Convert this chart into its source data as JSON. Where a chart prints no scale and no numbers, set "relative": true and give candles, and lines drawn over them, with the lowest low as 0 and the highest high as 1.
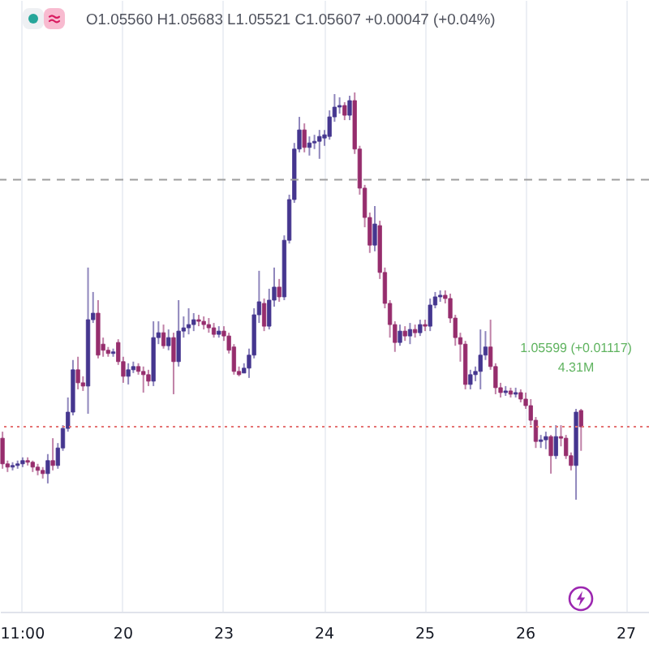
{
  "chart_data": {
    "type": "candlestick",
    "relative": true,
    "annotations": [
      "O1.05560 H1.05683 L1.05521 C1.05607 +0.00047 (+0.04%)",
      "1.05599 (+0.01117)",
      "4.31M"
    ],
    "categories": [
      null,
      null,
      null,
      null,
      "11:00",
      null,
      null,
      null,
      null,
      null,
      null,
      null,
      null,
      null,
      null,
      null,
      null,
      null,
      null,
      null,
      null,
      null,
      null,
      null,
      "20",
      null,
      null,
      null,
      null,
      null,
      null,
      null,
      null,
      null,
      null,
      null,
      null,
      null,
      null,
      null,
      null,
      null,
      null,
      null,
      "23",
      null,
      null,
      null,
      null,
      null,
      null,
      null,
      null,
      null,
      null,
      null,
      null,
      null,
      null,
      null,
      null,
      null,
      null,
      null,
      "24",
      null,
      null,
      null,
      null,
      null,
      null,
      null,
      null,
      null,
      null,
      null,
      null,
      null,
      null,
      null,
      null,
      null,
      null,
      null,
      "25",
      null,
      null,
      null,
      null,
      null,
      null,
      null,
      null,
      null,
      null,
      null,
      null,
      null,
      null,
      null,
      null,
      null,
      null,
      null,
      "26",
      null,
      null,
      null,
      null,
      null,
      null,
      null,
      null,
      null,
      null,
      null,
      null,
      null,
      null,
      null,
      null,
      null,
      null,
      null,
      "27",
      null,
      null,
      null,
      null
    ],
    "ohlc": [
      [
        0.151,
        0.167,
        0.076,
        0.088
      ],
      [
        0.088,
        0.096,
        0.068,
        0.08
      ],
      [
        0.08,
        0.092,
        0.072,
        0.084
      ],
      [
        0.084,
        0.096,
        0.076,
        0.088
      ],
      [
        0.088,
        0.104,
        0.08,
        0.096
      ],
      [
        0.096,
        0.104,
        0.084,
        0.092
      ],
      [
        0.092,
        0.096,
        0.068,
        0.08
      ],
      [
        0.08,
        0.088,
        0.06,
        0.072
      ],
      [
        0.072,
        0.08,
        0.052,
        0.064
      ],
      [
        0.064,
        0.112,
        0.04,
        0.096
      ],
      [
        0.096,
        0.151,
        0.072,
        0.084
      ],
      [
        0.084,
        0.139,
        0.076,
        0.127
      ],
      [
        0.127,
        0.183,
        0.12,
        0.175
      ],
      [
        0.175,
        0.251,
        0.167,
        0.215
      ],
      [
        0.215,
        0.343,
        0.207,
        0.319
      ],
      [
        0.319,
        0.351,
        0.271,
        0.287
      ],
      [
        0.287,
        0.303,
        0.267,
        0.279
      ],
      [
        0.279,
        0.57,
        0.211,
        0.442
      ],
      [
        0.442,
        0.51,
        0.434,
        0.458
      ],
      [
        0.458,
        0.49,
        0.347,
        0.355
      ],
      [
        0.382,
        0.398,
        0.351,
        0.367
      ],
      [
        0.367,
        0.375,
        0.351,
        0.359
      ],
      [
        0.359,
        0.371,
        0.351,
        0.363
      ],
      [
        0.386,
        0.394,
        0.331,
        0.339
      ],
      [
        0.339,
        0.351,
        0.287,
        0.303
      ],
      [
        0.303,
        0.335,
        0.283,
        0.319
      ],
      [
        0.319,
        0.339,
        0.311,
        0.327
      ],
      [
        0.327,
        0.335,
        0.307,
        0.315
      ],
      [
        0.315,
        0.327,
        0.263,
        0.307
      ],
      [
        0.307,
        0.319,
        0.279,
        0.291
      ],
      [
        0.291,
        0.438,
        0.279,
        0.398
      ],
      [
        0.398,
        0.438,
        0.382,
        0.41
      ],
      [
        0.41,
        0.43,
        0.371,
        0.378
      ],
      [
        0.378,
        0.418,
        0.367,
        0.398
      ],
      [
        0.398,
        0.41,
        0.259,
        0.339
      ],
      [
        0.339,
        0.49,
        0.327,
        0.414
      ],
      [
        0.414,
        0.45,
        0.398,
        0.422
      ],
      [
        0.422,
        0.47,
        0.406,
        0.43
      ],
      [
        0.43,
        0.458,
        0.414,
        0.442
      ],
      [
        0.442,
        0.454,
        0.426,
        0.438
      ],
      [
        0.438,
        0.45,
        0.418,
        0.43
      ],
      [
        0.43,
        0.446,
        0.41,
        0.422
      ],
      [
        0.422,
        0.434,
        0.398,
        0.406
      ],
      [
        0.406,
        0.426,
        0.398,
        0.414
      ],
      [
        0.414,
        0.426,
        0.39,
        0.402
      ],
      [
        0.402,
        0.41,
        0.359,
        0.367
      ],
      [
        0.375,
        0.382,
        0.307,
        0.315
      ],
      [
        0.315,
        0.327,
        0.303,
        0.307
      ],
      [
        0.311,
        0.335,
        0.311,
        0.323
      ],
      [
        0.323,
        0.371,
        0.299,
        0.355
      ],
      [
        0.355,
        0.47,
        0.347,
        0.454
      ],
      [
        0.454,
        0.562,
        0.434,
        0.486
      ],
      [
        0.482,
        0.494,
        0.414,
        0.426
      ],
      [
        0.426,
        0.518,
        0.418,
        0.49
      ],
      [
        0.49,
        0.57,
        0.474,
        0.522
      ],
      [
        0.522,
        0.542,
        0.486,
        0.498
      ],
      [
        0.498,
        0.649,
        0.49,
        0.637
      ],
      [
        0.637,
        0.749,
        0.629,
        0.737
      ],
      [
        0.737,
        0.876,
        0.729,
        0.861
      ],
      [
        0.861,
        0.94,
        0.853,
        0.908
      ],
      [
        0.908,
        0.924,
        0.853,
        0.865
      ],
      [
        0.865,
        0.892,
        0.845,
        0.876
      ],
      [
        0.876,
        0.896,
        0.861,
        0.88
      ],
      [
        0.88,
        0.908,
        0.837,
        0.892
      ],
      [
        0.888,
        0.908,
        0.869,
        0.896
      ],
      [
        0.892,
        0.956,
        0.884,
        0.94
      ],
      [
        0.94,
        0.996,
        0.928,
        0.964
      ],
      [
        0.964,
        0.988,
        0.948,
        0.968
      ],
      [
        0.968,
        0.976,
        0.932,
        0.944
      ],
      [
        0.944,
        0.992,
        0.932,
        0.98
      ],
      [
        0.98,
        1,
        0.849,
        0.861
      ],
      [
        0.861,
        0.869,
        0.749,
        0.765
      ],
      [
        0.765,
        0.773,
        0.669,
        0.693
      ],
      [
        0.693,
        0.705,
        0.606,
        0.625
      ],
      [
        0.625,
        0.721,
        0.61,
        0.677
      ],
      [
        0.673,
        0.685,
        0.542,
        0.558
      ],
      [
        0.558,
        0.57,
        0.47,
        0.482
      ],
      [
        0.482,
        0.49,
        0.398,
        0.43
      ],
      [
        0.43,
        0.438,
        0.363,
        0.386
      ],
      [
        0.386,
        0.43,
        0.378,
        0.414
      ],
      [
        0.414,
        0.426,
        0.39,
        0.402
      ],
      [
        0.402,
        0.434,
        0.382,
        0.418
      ],
      [
        0.418,
        0.43,
        0.398,
        0.41
      ],
      [
        0.41,
        0.442,
        0.402,
        0.43
      ],
      [
        0.43,
        0.442,
        0.414,
        0.426
      ],
      [
        0.426,
        0.494,
        0.414,
        0.478
      ],
      [
        0.478,
        0.51,
        0.47,
        0.498
      ],
      [
        0.498,
        0.514,
        0.486,
        0.502
      ],
      [
        0.502,
        0.514,
        0.482,
        0.494
      ],
      [
        0.494,
        0.506,
        0.434,
        0.446
      ],
      [
        0.446,
        0.454,
        0.378,
        0.398
      ],
      [
        0.398,
        0.41,
        0.339,
        0.382
      ],
      [
        0.382,
        0.39,
        0.271,
        0.283
      ],
      [
        0.283,
        0.319,
        0.271,
        0.307
      ],
      [
        0.307,
        0.327,
        0.291,
        0.315
      ],
      [
        0.315,
        0.418,
        0.271,
        0.355
      ],
      [
        0.355,
        0.414,
        0.343,
        0.375
      ],
      [
        0.375,
        0.442,
        0.319,
        0.327
      ],
      [
        0.327,
        0.335,
        0.259,
        0.275
      ],
      [
        0.275,
        0.287,
        0.251,
        0.263
      ],
      [
        0.263,
        0.279,
        0.255,
        0.267
      ],
      [
        0.267,
        0.275,
        0.251,
        0.259
      ],
      [
        0.259,
        0.275,
        0.251,
        0.263
      ],
      [
        0.263,
        0.271,
        0.239,
        0.247
      ],
      [
        0.247,
        0.263,
        0.223,
        0.231
      ],
      [
        0.231,
        0.247,
        0.183,
        0.195
      ],
      [
        0.195,
        0.203,
        0.127,
        0.143
      ],
      [
        0.143,
        0.159,
        0.127,
        0.147
      ],
      [
        0.147,
        0.167,
        0.124,
        0.155
      ],
      [
        0.155,
        0.159,
        0.064,
        0.108
      ],
      [
        0.108,
        0.183,
        0.1,
        0.155
      ],
      [
        0.155,
        0.183,
        0.131,
        0.151
      ],
      [
        0.151,
        0.159,
        0.1,
        0.108
      ],
      [
        0.108,
        0.116,
        0.072,
        0.084
      ],
      [
        0.084,
        0.223,
        0,
        0.215
      ],
      [
        0.219,
        0.223,
        0.12,
        0.179
      ],
      null,
      null,
      null,
      null,
      null,
      null,
      null,
      null,
      null,
      null,
      null,
      null,
      null
    ],
    "colors": [
      "#962d6d",
      "#962d6d",
      "#45368f",
      "#45368f",
      "#45368f",
      "#962d6d",
      "#962d6d",
      "#962d6d",
      "#962d6d",
      "#45368f",
      "#962d6d",
      "#45368f",
      "#45368f",
      "#45368f",
      "#45368f",
      "#962d6d",
      "#962d6d",
      "#45368f",
      "#45368f",
      "#962d6d",
      "#962d6d",
      "#962d6d",
      "#45368f",
      "#962d6d",
      "#962d6d",
      "#45368f",
      "#45368f",
      "#962d6d",
      "#962d6d",
      "#962d6d",
      "#45368f",
      "#45368f",
      "#962d6d",
      "#45368f",
      "#962d6d",
      "#45368f",
      "#45368f",
      "#45368f",
      "#45368f",
      "#962d6d",
      "#962d6d",
      "#962d6d",
      "#962d6d",
      "#45368f",
      "#962d6d",
      "#962d6d",
      "#962d6d",
      "#962d6d",
      "#45368f",
      "#45368f",
      "#45368f",
      "#45368f",
      "#962d6d",
      "#45368f",
      "#45368f",
      "#962d6d",
      "#45368f",
      "#45368f",
      "#45368f",
      "#45368f",
      "#962d6d",
      "#45368f",
      "#45368f",
      "#45368f",
      "#45368f",
      "#45368f",
      "#45368f",
      "#45368f",
      "#962d6d",
      "#45368f",
      "#962d6d",
      "#962d6d",
      "#962d6d",
      "#962d6d",
      "#45368f",
      "#962d6d",
      "#962d6d",
      "#962d6d",
      "#962d6d",
      "#45368f",
      "#962d6d",
      "#45368f",
      "#962d6d",
      "#45368f",
      "#962d6d",
      "#45368f",
      "#45368f",
      "#45368f",
      "#962d6d",
      "#962d6d",
      "#962d6d",
      "#962d6d",
      "#962d6d",
      "#45368f",
      "#45368f",
      "#45368f",
      "#45368f",
      "#962d6d",
      "#962d6d",
      "#962d6d",
      "#45368f",
      "#962d6d",
      "#45368f",
      "#962d6d",
      "#962d6d",
      "#962d6d",
      "#962d6d",
      "#45368f",
      "#45368f",
      "#962d6d",
      "#45368f",
      "#962d6d",
      "#962d6d",
      "#962d6d",
      "#45368f",
      "#962d6d",
      null,
      null,
      null,
      null,
      null,
      null,
      null,
      null,
      null,
      null,
      null,
      null,
      null
    ],
    "grid": "x",
    "ref_lines": [
      {
        "axis": "y",
        "value": 0.786,
        "color": "#9e9e9e",
        "line_style": "dashed"
      },
      {
        "axis": "y",
        "value": 0.179,
        "color": "#e57373",
        "line_style": "dotted"
      }
    ]
  }
}
